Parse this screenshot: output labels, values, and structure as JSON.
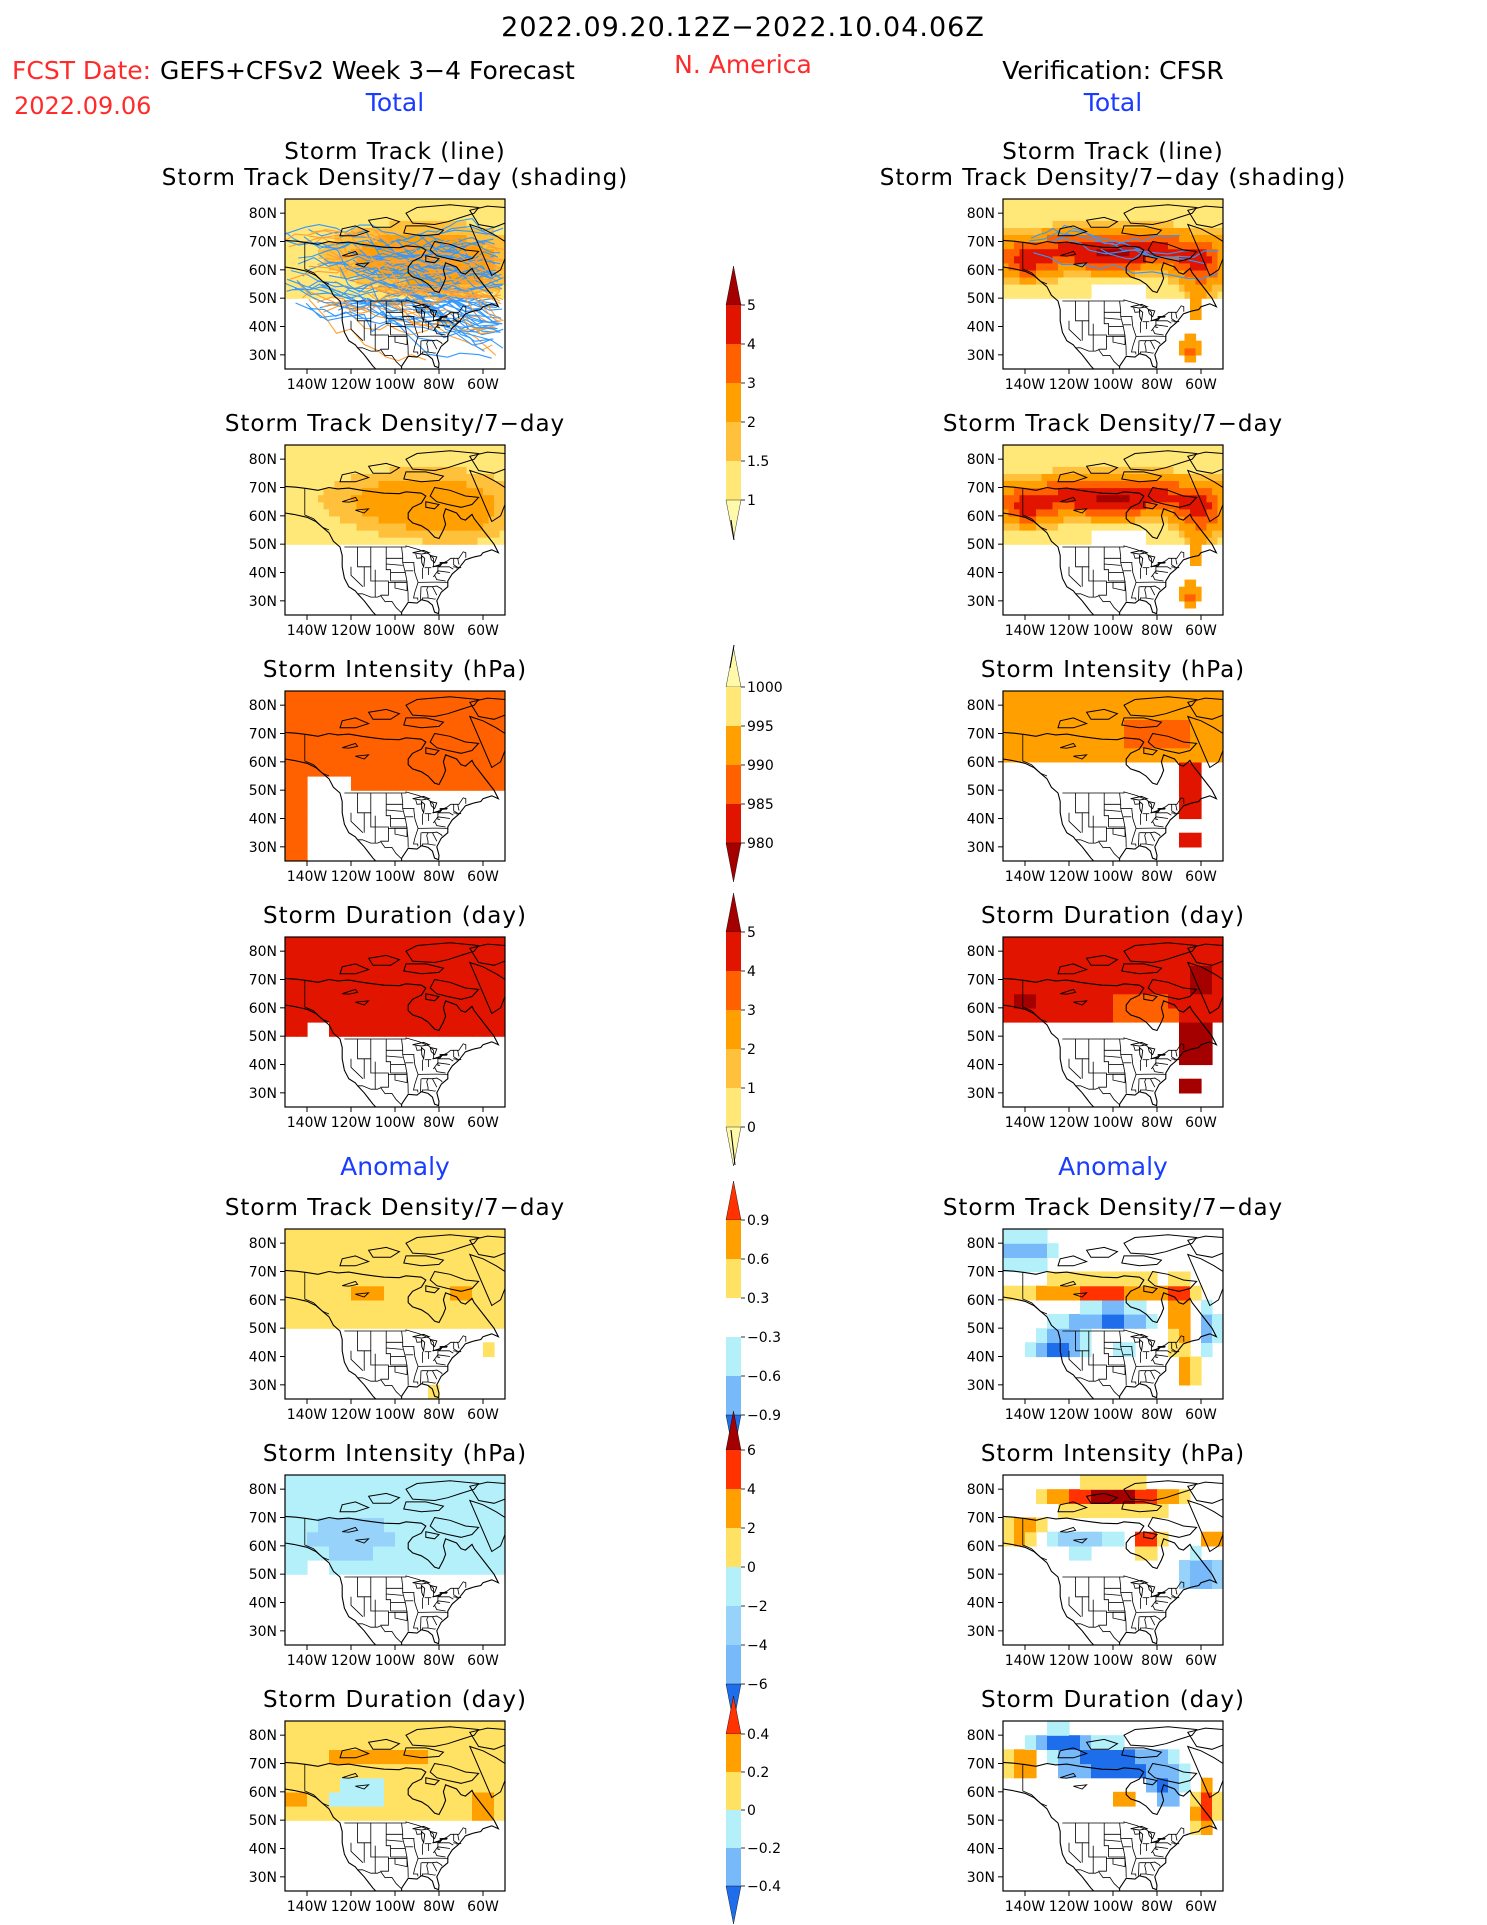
{
  "header": {
    "main_title": "2022.09.20.12Z−2022.10.04.06Z",
    "fcst_label": "FCST Date:",
    "fcst_model": "GEFS+CFSv2 Week 3−4 Forecast",
    "fcst_date": "2022.09.06",
    "region": "N. America",
    "verification": "Verification: CFSR",
    "total_left": "Total",
    "total_right": "Total",
    "anomaly_left": "Anomaly",
    "anomaly_right": "Anomaly"
  },
  "panel_titles": {
    "track_line": "Storm Track (line)",
    "track_shading": "Storm Track Density/7−day (shading)",
    "density": "Storm Track Density/7−day",
    "intensity": "Storm Intensity (hPa)",
    "duration": "Storm Duration (day)"
  },
  "colors": {
    "title_red": "#ff2a2a",
    "label_blue": "#1a3cff",
    "track_blue": "#3399ff",
    "track_orange": "#ffa030",
    "map_lines": "#000000"
  },
  "chart_data": [
    {
      "type": "heatmap",
      "name": "storm_track_density_total_colorbar",
      "levels": [
        "1",
        "1.5",
        "2",
        "3",
        "4",
        "5"
      ],
      "colors": [
        "#fffaaa",
        "#ffe878",
        "#ffc03c",
        "#ffa000",
        "#ff6000",
        "#e11400",
        "#a50000"
      ]
    },
    {
      "type": "heatmap",
      "name": "storm_intensity_total_colorbar",
      "levels": [
        "1000",
        "995",
        "990",
        "985",
        "980"
      ],
      "colors": [
        "#fffaaa",
        "#ffe878",
        "#ffa000",
        "#ff6000",
        "#e11400",
        "#a50000"
      ]
    },
    {
      "type": "heatmap",
      "name": "storm_duration_total_colorbar",
      "levels": [
        "0",
        "1",
        "2",
        "3",
        "4",
        "5"
      ],
      "colors": [
        "#fffaaa",
        "#ffe878",
        "#ffc03c",
        "#ffa000",
        "#ff6000",
        "#e11400",
        "#a50000"
      ]
    },
    {
      "type": "heatmap",
      "name": "density_anomaly_colorbar",
      "levels": [
        "0.9",
        "0.6",
        "0.3",
        "−0.3",
        "−0.6",
        "−0.9"
      ],
      "colors": [
        "#ff3200",
        "#ffa000",
        "#ffe164",
        "#ffffff",
        "#b4f0fa",
        "#78b9fa",
        "#1e6eeb"
      ]
    },
    {
      "type": "heatmap",
      "name": "intensity_anomaly_colorbar",
      "levels": [
        "6",
        "4",
        "2",
        "0",
        "−2",
        "−4",
        "−6"
      ],
      "colors": [
        "#a50000",
        "#ff3200",
        "#ffa000",
        "#ffe164",
        "#b4f0fa",
        "#96d2fa",
        "#78b9fa",
        "#1e6eeb"
      ]
    },
    {
      "type": "heatmap",
      "name": "duration_anomaly_colorbar",
      "levels": [
        "0.4",
        "0.2",
        "0",
        "−0.2",
        "−0.4"
      ],
      "colors": [
        "#ff3200",
        "#ffa000",
        "#ffe164",
        "#b4f0fa",
        "#78b9fa",
        "#1e6eeb"
      ]
    }
  ],
  "maps": {
    "lat_labels": [
      "80N",
      "70N",
      "60N",
      "50N",
      "40N",
      "30N"
    ],
    "lon_labels": [
      "140W",
      "120W",
      "100W",
      "80W",
      "60W"
    ],
    "panels": [
      {
        "id": "fcst-track",
        "title": [
          "Storm Track (line)",
          "Storm Track Density/7−day (shading)"
        ],
        "kind": "tracks_fcst"
      },
      {
        "id": "obs-track",
        "title": [
          "Storm Track (line)",
          "Storm Track Density/7−day (shading)"
        ],
        "kind": "tracks_obs"
      },
      {
        "id": "fcst-density",
        "title": [
          "Storm Track Density/7−day"
        ],
        "kind": "density_fcst"
      },
      {
        "id": "obs-density",
        "title": [
          "Storm Track Density/7−day"
        ],
        "kind": "density_obs"
      },
      {
        "id": "fcst-intensity",
        "title": [
          "Storm Intensity (hPa)"
        ],
        "kind": "intensity_fcst"
      },
      {
        "id": "obs-intensity",
        "title": [
          "Storm Intensity (hPa)"
        ],
        "kind": "intensity_obs"
      },
      {
        "id": "fcst-duration",
        "title": [
          "Storm Duration (day)"
        ],
        "kind": "duration_fcst"
      },
      {
        "id": "obs-duration",
        "title": [
          "Storm Duration (day)"
        ],
        "kind": "duration_obs"
      },
      {
        "id": "fcst-density-anom",
        "title": [
          "Storm Track Density/7−day"
        ],
        "kind": "danom_fcst"
      },
      {
        "id": "obs-density-anom",
        "title": [
          "Storm Track Density/7−day"
        ],
        "kind": "danom_obs"
      },
      {
        "id": "fcst-intensity-anom",
        "title": [
          "Storm Intensity (hPa)"
        ],
        "kind": "ianom_fcst"
      },
      {
        "id": "obs-intensity-anom",
        "title": [
          "Storm Intensity (hPa)"
        ],
        "kind": "ianom_obs"
      },
      {
        "id": "fcst-duration-anom",
        "title": [
          "Storm Duration (day)"
        ],
        "kind": "uanom_fcst"
      },
      {
        "id": "obs-duration-anom",
        "title": [
          "Storm Duration (day)"
        ],
        "kind": "uanom_obs"
      }
    ]
  }
}
